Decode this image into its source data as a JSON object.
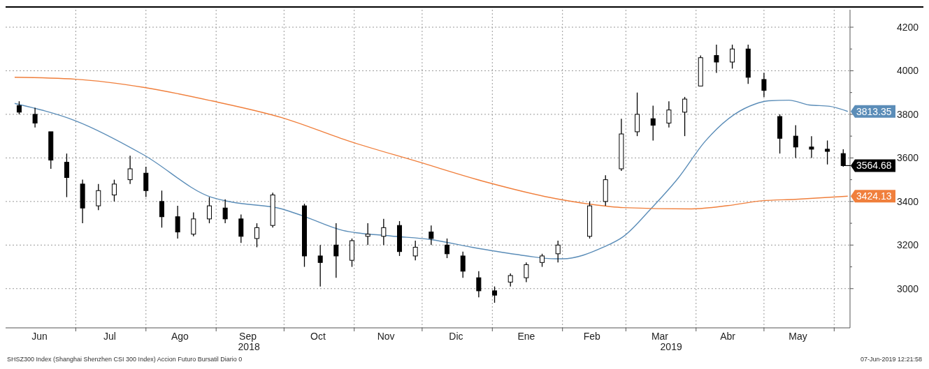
{
  "chart_data": {
    "type": "candlestick",
    "color": "#000000",
    "x": [
      "2018-06-06",
      "2018-06-13",
      "2018-06-20",
      "2018-06-27",
      "2018-07-04",
      "2018-07-11",
      "2018-07-18",
      "2018-07-25",
      "2018-08-01",
      "2018-08-08",
      "2018-08-15",
      "2018-08-22",
      "2018-08-29",
      "2018-09-05",
      "2018-09-12",
      "2018-09-19",
      "2018-09-26",
      "2018-10-10",
      "2018-10-17",
      "2018-10-24",
      "2018-10-31",
      "2018-11-07",
      "2018-11-14",
      "2018-11-21",
      "2018-11-28",
      "2018-12-05",
      "2018-12-12",
      "2018-12-19",
      "2018-12-26",
      "2019-01-02",
      "2019-01-09",
      "2019-01-16",
      "2019-01-23",
      "2019-01-30",
      "2019-02-13",
      "2019-02-20",
      "2019-02-27",
      "2019-03-06",
      "2019-03-13",
      "2019-03-20",
      "2019-03-27",
      "2019-04-03",
      "2019-04-10",
      "2019-04-17",
      "2019-04-24",
      "2019-05-01",
      "2019-05-08",
      "2019-05-15",
      "2019-05-22",
      "2019-05-29",
      "2019-06-05"
    ],
    "ohlc": [
      [
        3840,
        3860,
        3800,
        3810
      ],
      [
        3800,
        3830,
        3740,
        3760
      ],
      [
        3720,
        3720,
        3550,
        3590
      ],
      [
        3580,
        3620,
        3420,
        3510
      ],
      [
        3480,
        3500,
        3300,
        3370
      ],
      [
        3380,
        3480,
        3360,
        3450
      ],
      [
        3430,
        3500,
        3400,
        3480
      ],
      [
        3500,
        3610,
        3480,
        3550
      ],
      [
        3530,
        3560,
        3420,
        3450
      ],
      [
        3400,
        3450,
        3280,
        3330
      ],
      [
        3330,
        3380,
        3230,
        3260
      ],
      [
        3250,
        3350,
        3240,
        3320
      ],
      [
        3320,
        3420,
        3300,
        3380
      ],
      [
        3370,
        3410,
        3300,
        3320
      ],
      [
        3320,
        3340,
        3210,
        3240
      ],
      [
        3230,
        3300,
        3190,
        3280
      ],
      [
        3290,
        3440,
        3280,
        3430
      ],
      [
        3380,
        3390,
        3100,
        3150
      ],
      [
        3150,
        3200,
        3010,
        3120
      ],
      [
        3200,
        3300,
        3050,
        3150
      ],
      [
        3130,
        3230,
        3100,
        3220
      ],
      [
        3240,
        3300,
        3200,
        3250
      ],
      [
        3240,
        3320,
        3200,
        3280
      ],
      [
        3290,
        3310,
        3150,
        3170
      ],
      [
        3150,
        3220,
        3130,
        3190
      ],
      [
        3260,
        3290,
        3200,
        3230
      ],
      [
        3200,
        3230,
        3140,
        3160
      ],
      [
        3150,
        3170,
        3050,
        3080
      ],
      [
        3050,
        3080,
        2960,
        2990
      ],
      [
        2990,
        3010,
        2935,
        2970
      ],
      [
        3030,
        3070,
        3010,
        3060
      ],
      [
        3050,
        3120,
        3030,
        3110
      ],
      [
        3120,
        3160,
        3100,
        3150
      ],
      [
        3160,
        3220,
        3120,
        3200
      ],
      [
        3240,
        3400,
        3230,
        3380
      ],
      [
        3400,
        3520,
        3380,
        3500
      ],
      [
        3550,
        3780,
        3540,
        3710
      ],
      [
        3720,
        3900,
        3700,
        3800
      ],
      [
        3780,
        3840,
        3680,
        3750
      ],
      [
        3760,
        3860,
        3740,
        3820
      ],
      [
        3810,
        3880,
        3700,
        3870
      ],
      [
        3930,
        4070,
        3930,
        4060
      ],
      [
        4070,
        4120,
        3990,
        4040
      ],
      [
        4040,
        4120,
        4010,
        4100
      ],
      [
        4100,
        4120,
        3940,
        3970
      ],
      [
        3960,
        3990,
        3880,
        3910
      ],
      [
        3790,
        3800,
        3620,
        3690
      ],
      [
        3700,
        3750,
        3600,
        3650
      ],
      [
        3650,
        3700,
        3600,
        3640
      ],
      [
        3640,
        3680,
        3570,
        3630
      ],
      [
        3620,
        3640,
        3560,
        3564.68
      ]
    ],
    "series": [
      {
        "type": "line",
        "color": "#5b8db8",
        "x": [
          "2018-06-04",
          "2018-07-01",
          "2018-07-31",
          "2018-08-30",
          "2018-09-08",
          "2018-09-30",
          "2018-10-09",
          "2018-10-27",
          "2018-11-17",
          "2018-12-05",
          "2018-12-23",
          "2019-01-11",
          "2019-01-29",
          "2019-02-01",
          "2019-02-19",
          "2019-02-28",
          "2019-03-12",
          "2019-03-24",
          "2019-04-05",
          "2019-04-18",
          "2019-04-27",
          "2019-05-03",
          "2019-05-12",
          "2019-05-21",
          "2019-05-30",
          "2019-06-07"
        ],
        "values": [
          3850,
          3770,
          3614,
          3419,
          3397,
          3366,
          3335,
          3267,
          3242,
          3225,
          3190,
          3158,
          3137,
          3137,
          3190,
          3240,
          3366,
          3506,
          3676,
          3800,
          3847,
          3862,
          3865,
          3843,
          3837,
          3813.35
        ],
        "value_labels": [
          null,
          null,
          null,
          null,
          null,
          null,
          null,
          null,
          null,
          null,
          null,
          null,
          null,
          null,
          null,
          null,
          null,
          null,
          null,
          null,
          null,
          null,
          null,
          null,
          null,
          "3813.35"
        ]
      },
      {
        "type": "line",
        "color": "#f07f3c",
        "x": [
          "2018-06-04",
          "2018-07-01",
          "2018-07-31",
          "2018-08-30",
          "2018-09-30",
          "2018-10-30",
          "2018-11-29",
          "2018-12-29",
          "2019-01-29",
          "2019-02-13",
          "2019-02-28",
          "2019-03-30",
          "2019-04-15",
          "2019-04-30",
          "2019-05-15",
          "2019-06-07"
        ],
        "values": [
          3970,
          3961,
          3924,
          3862,
          3785,
          3676,
          3583,
          3490,
          3413,
          3388,
          3372,
          3366,
          3381,
          3403,
          3410,
          3424.13
        ],
        "value_labels": [
          null,
          null,
          null,
          null,
          null,
          null,
          null,
          null,
          null,
          null,
          null,
          null,
          null,
          null,
          null,
          "3424.13"
        ]
      }
    ],
    "xlim": [
      "2018-05-31",
      "2019-06-08"
    ],
    "xticks": [
      {
        "value": "2018-06-15",
        "label": "Jun"
      },
      {
        "value": "2018-07-01",
        "label": null
      },
      {
        "value": "2018-07-16",
        "label": "Jul"
      },
      {
        "value": "2018-08-01",
        "label": null
      },
      {
        "value": "2018-08-16",
        "label": "Ago"
      },
      {
        "value": "2018-09-01",
        "label": null
      },
      {
        "value": "2018-09-15",
        "label": "Sep"
      },
      {
        "value": "2018-10-01",
        "label": null
      },
      {
        "value": "2018-10-16",
        "label": "Oct"
      },
      {
        "value": "2018-11-01",
        "label": null
      },
      {
        "value": "2018-11-15",
        "label": "Nov"
      },
      {
        "value": "2018-12-01",
        "label": null
      },
      {
        "value": "2018-12-16",
        "label": "Dic"
      },
      {
        "value": "2019-01-01",
        "label": null
      },
      {
        "value": "2019-01-16",
        "label": "Ene"
      },
      {
        "value": "2019-02-01",
        "label": null
      },
      {
        "value": "2019-02-14",
        "label": "Feb"
      },
      {
        "value": "2019-03-01",
        "label": null
      },
      {
        "value": "2019-03-16",
        "label": "Mar"
      },
      {
        "value": "2019-04-01",
        "label": null
      },
      {
        "value": "2019-04-15",
        "label": "Abr"
      },
      {
        "value": "2019-05-01",
        "label": null
      },
      {
        "value": "2019-05-16",
        "label": "May"
      },
      {
        "value": "2019-06-01",
        "label": null
      }
    ],
    "ylim": [
      2820,
      4280
    ],
    "yticks": [
      3000,
      {
        "value": 3100,
        "label": null
      },
      3200,
      {
        "value": 3300,
        "label": null
      },
      3400,
      {
        "value": 3500,
        "label": null
      },
      3600,
      {
        "value": 3700,
        "label": null
      },
      3800,
      {
        "value": 3900,
        "label": null
      },
      4000,
      {
        "value": 4100,
        "label": null
      },
      4200
    ],
    "grid": true,
    "ref_lines": [
      {
        "axis": "y",
        "value": 3564.68,
        "label": "3564.68",
        "color": "#000000"
      }
    ],
    "annotations": [
      "2018",
      "2019",
      "SHSZ300 Index (Shanghai Shenzhen CSI 300 Index) Accion Futuro Bursatil Diario 0",
      "07-Jun-2019 12:21:58"
    ]
  }
}
